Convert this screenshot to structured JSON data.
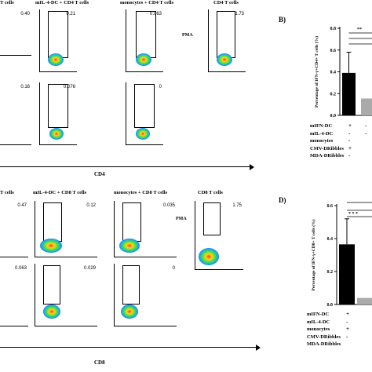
{
  "panels": {
    "top": {
      "col_titles": [
        "T cells",
        "mIL-4-DC + CD4 T cells",
        "monocytes + CD4 T cells",
        "CD4 T cells"
      ],
      "row1_pcts": [
        "0.40",
        "0.21",
        "0.063",
        "1.73"
      ],
      "row2_pcts": [
        "0.16",
        "0.076",
        "0"
      ],
      "row_label": "PMA",
      "x_axis_label": "CD4"
    },
    "bottom": {
      "col_titles": [
        "T cells",
        "mIL-4-DC + CD8 T cells",
        "monocytes + CD8 T cells",
        "CD8 T cells"
      ],
      "row1_pcts": [
        "0.47",
        "0.12",
        "0.035",
        "1.75"
      ],
      "row2_pcts": [
        "0.063",
        "0.029",
        "0"
      ],
      "row_label": "PMA",
      "x_axis_label": "CD8"
    }
  },
  "bar_panels": {
    "B": {
      "letter": "B)",
      "signif": "**"
    },
    "D": {
      "letter": "D)",
      "signif": "* * *"
    }
  },
  "table_rows": [
    "mIFN-DC",
    "mIL-4-DC",
    "monocytes",
    "CMV-DRibbles",
    "MDA-DRibbles"
  ],
  "table_vals_B": {
    "col1": [
      "+",
      "-",
      "-",
      "+",
      "-"
    ],
    "col2": [
      "-",
      "-",
      "",
      "",
      ""
    ]
  },
  "table_vals_D": {
    "col1": [
      "+",
      "-",
      "",
      "+",
      "-"
    ],
    "col2": [
      "",
      "",
      "",
      "",
      ""
    ]
  },
  "chart_data": [
    {
      "type": "bar",
      "panel": "B",
      "ylabel": "Percentage of IFN-γ+CD4+ T cells (%)",
      "ylim": [
        0,
        0.8
      ],
      "yticks": [
        "0.0",
        "0.2",
        "0.4",
        "0.6",
        "0.8"
      ],
      "bars": [
        {
          "value": 0.39,
          "error": 0.19,
          "color": "#000000"
        },
        {
          "value": 0.155,
          "error": 0.0,
          "color": "#aaaaaa"
        }
      ]
    },
    {
      "type": "bar",
      "panel": "D",
      "ylabel": "Percentage of IFN-γ+CD8+ T cells (%)",
      "ylim": [
        0,
        0.6
      ],
      "yticks": [
        "0.0",
        "0.2",
        "0.4",
        "0.6"
      ],
      "bars": [
        {
          "value": 0.365,
          "error": 0.155,
          "color": "#000000"
        },
        {
          "value": 0.04,
          "error": 0.0,
          "color": "#aaaaaa"
        }
      ]
    }
  ]
}
